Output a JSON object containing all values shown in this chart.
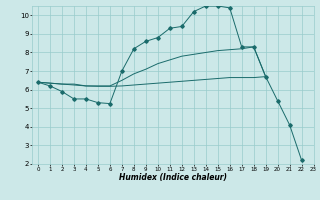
{
  "xlabel": "Humidex (Indice chaleur)",
  "ylabel": "",
  "background_color": "#cce8e8",
  "grid_color": "#99cccc",
  "line_color": "#1a6b6b",
  "xlim": [
    -0.5,
    23
  ],
  "ylim": [
    2,
    10.5
  ],
  "xticks": [
    0,
    1,
    2,
    3,
    4,
    5,
    6,
    7,
    8,
    9,
    10,
    11,
    12,
    13,
    14,
    15,
    16,
    17,
    18,
    19,
    20,
    21,
    22,
    23
  ],
  "yticks": [
    2,
    3,
    4,
    5,
    6,
    7,
    8,
    9,
    10
  ],
  "line1_x": [
    0,
    1,
    2,
    3,
    4,
    5,
    6,
    7,
    8,
    9,
    10,
    11,
    12,
    13,
    14,
    15,
    16,
    17,
    18,
    19,
    20,
    21,
    22
  ],
  "line1_y": [
    6.4,
    6.2,
    5.9,
    5.5,
    5.5,
    5.3,
    5.25,
    7.0,
    8.2,
    8.6,
    8.8,
    9.3,
    9.4,
    10.2,
    10.5,
    10.5,
    10.4,
    8.3,
    8.3,
    6.7,
    5.4,
    4.1,
    2.2
  ],
  "line2_x": [
    0,
    1,
    2,
    3,
    4,
    5,
    6,
    7,
    8,
    9,
    10,
    11,
    12,
    13,
    14,
    15,
    16,
    17,
    18,
    19
  ],
  "line2_y": [
    6.4,
    6.35,
    6.3,
    6.3,
    6.2,
    6.2,
    6.2,
    6.5,
    6.85,
    7.1,
    7.4,
    7.6,
    7.8,
    7.9,
    8.0,
    8.1,
    8.15,
    8.2,
    8.3,
    6.7
  ],
  "line3_x": [
    0,
    1,
    2,
    3,
    4,
    5,
    6,
    7,
    8,
    9,
    10,
    11,
    12,
    13,
    14,
    15,
    16,
    17,
    18,
    19
  ],
  "line3_y": [
    6.4,
    6.35,
    6.3,
    6.25,
    6.2,
    6.18,
    6.18,
    6.2,
    6.25,
    6.3,
    6.35,
    6.4,
    6.45,
    6.5,
    6.55,
    6.6,
    6.65,
    6.65,
    6.65,
    6.7
  ]
}
